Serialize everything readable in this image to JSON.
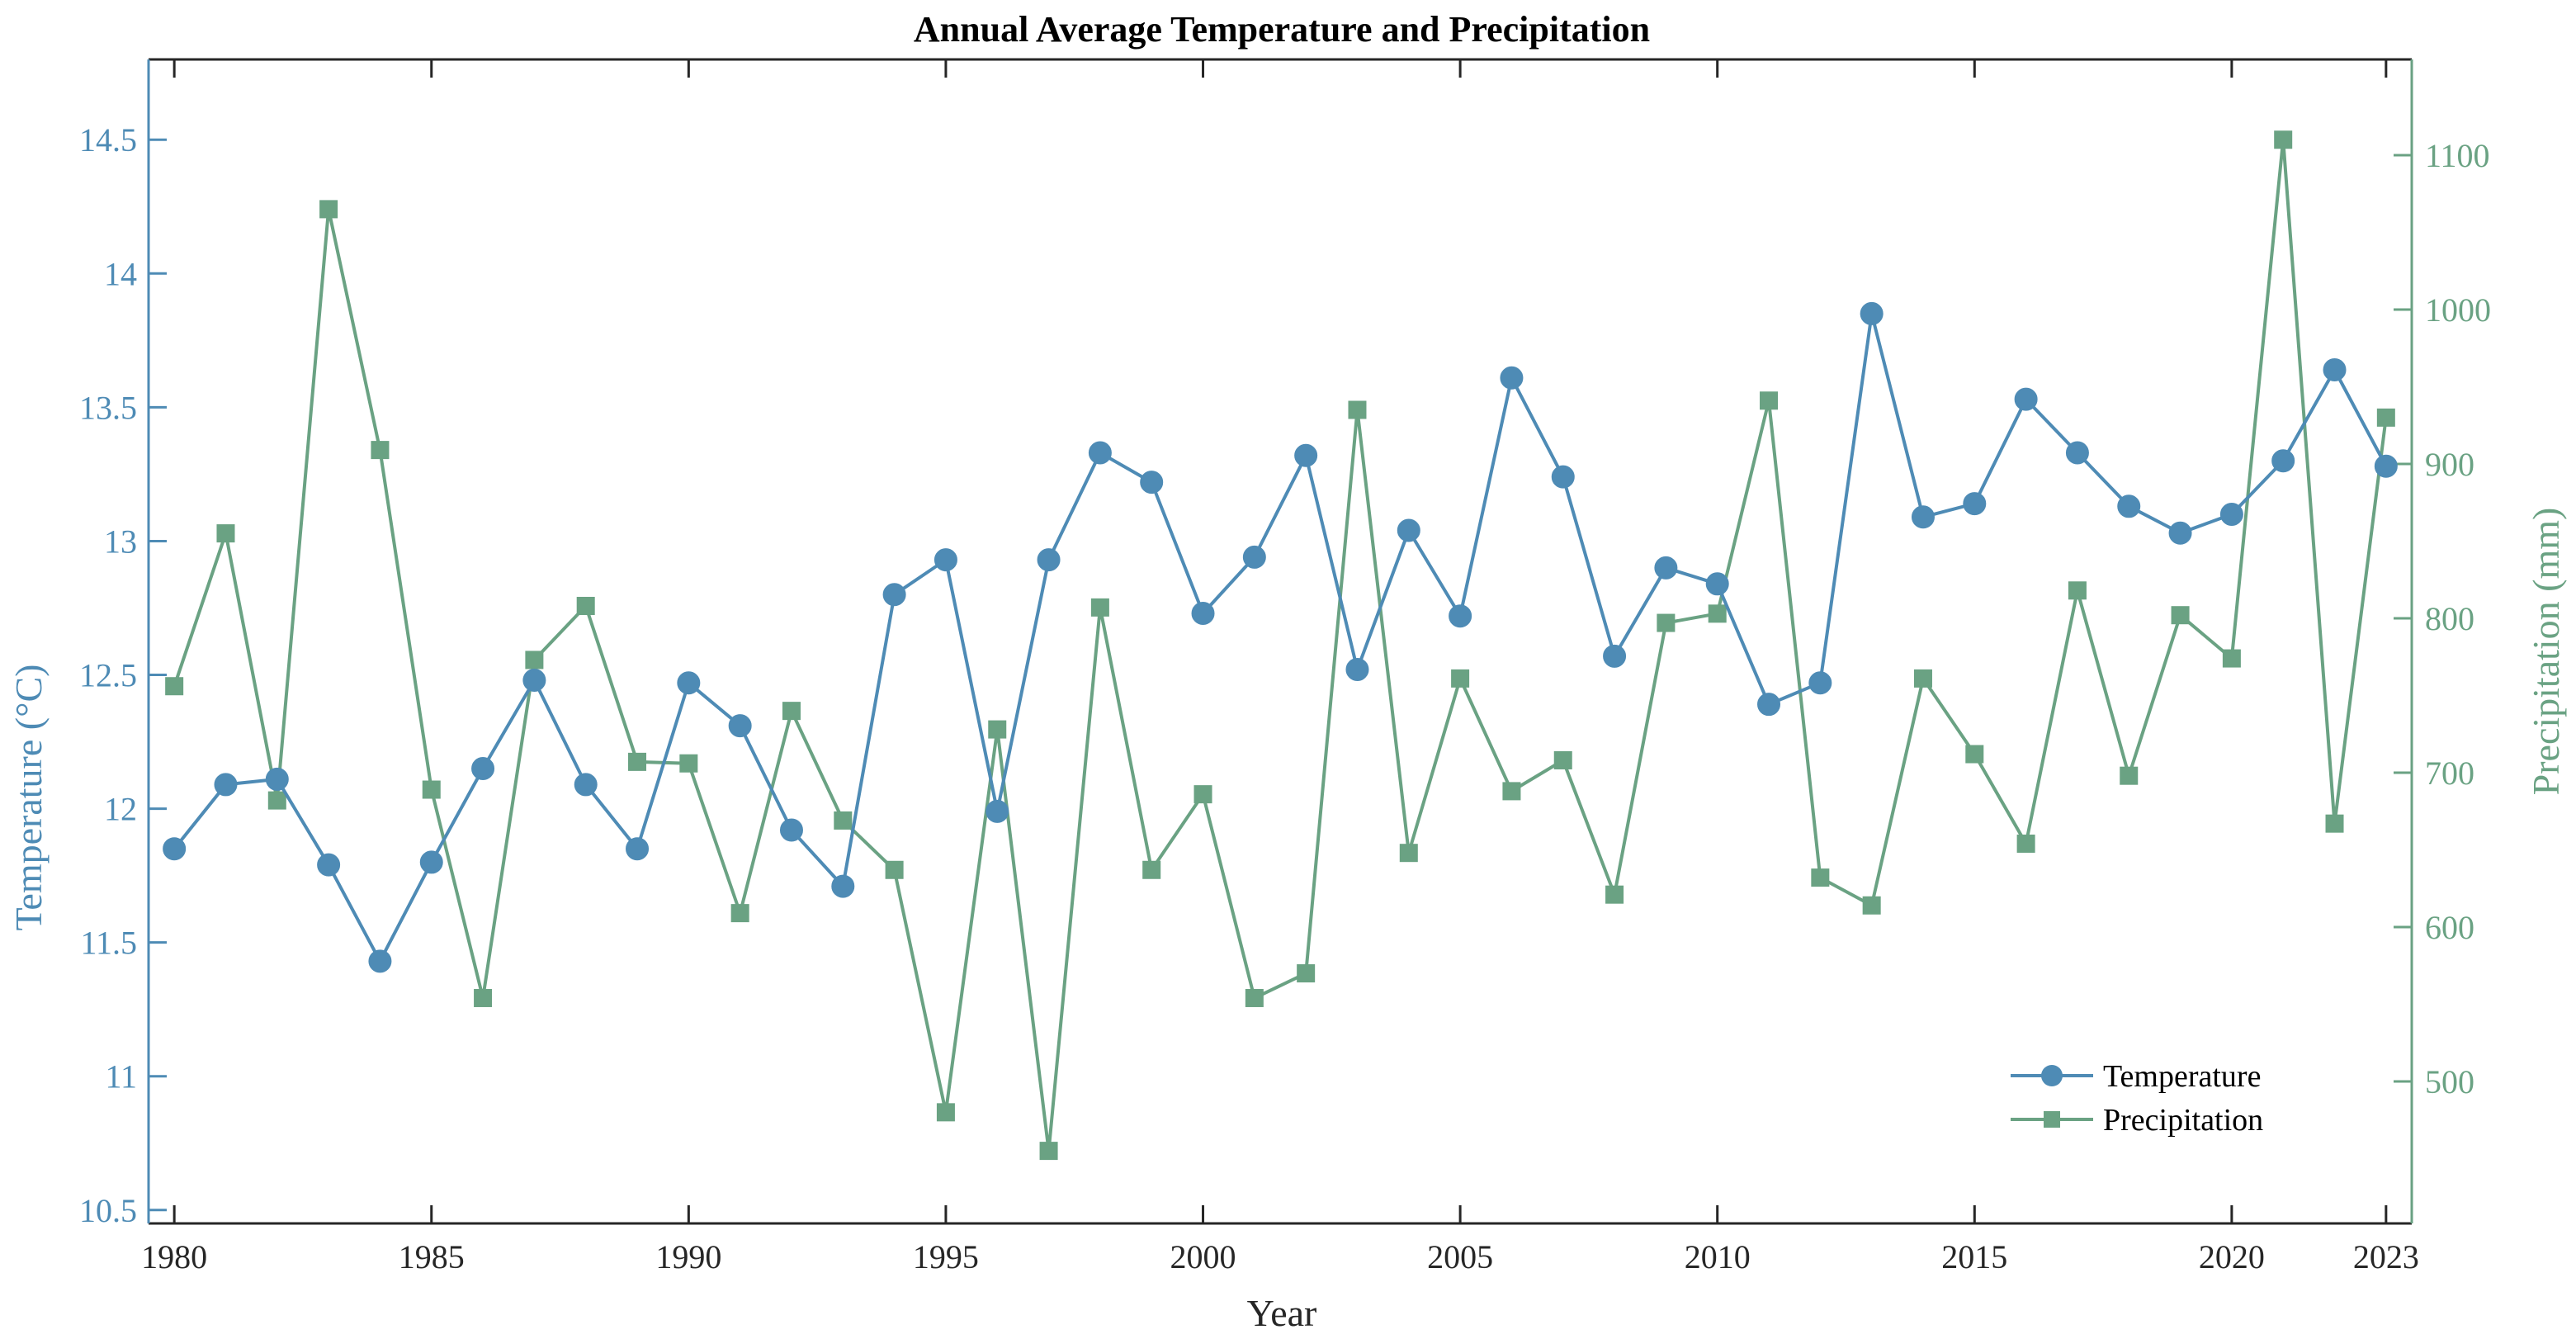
{
  "colors": {
    "temperature": "#4E8BB5",
    "precipitation": "#6AA283",
    "axis": "#262626"
  },
  "chart_data": {
    "type": "line",
    "title": "Annual Average Temperature and Precipitation",
    "xlabel": "Year",
    "ylabel_left": "Temperature (°C)",
    "ylabel_right": "Precipitation (mm)",
    "xlim": [
      1979.5,
      2023.5
    ],
    "ylim_left": [
      10.45,
      14.8
    ],
    "ylim_right": [
      408,
      1162
    ],
    "x_ticks": [
      1980,
      1985,
      1990,
      1995,
      2000,
      2005,
      2010,
      2015,
      2020,
      2023
    ],
    "y_ticks_left": [
      10.5,
      11,
      11.5,
      12,
      12.5,
      13,
      13.5,
      14,
      14.5
    ],
    "y_ticks_right": [
      500,
      600,
      700,
      800,
      900,
      1000,
      1100
    ],
    "legend_position": "lower-right",
    "grid": false,
    "x": [
      1980,
      1981,
      1982,
      1983,
      1984,
      1985,
      1986,
      1987,
      1988,
      1989,
      1990,
      1991,
      1992,
      1993,
      1994,
      1995,
      1996,
      1997,
      1998,
      1999,
      2000,
      2001,
      2002,
      2003,
      2004,
      2005,
      2006,
      2007,
      2008,
      2009,
      2010,
      2011,
      2012,
      2013,
      2014,
      2015,
      2016,
      2017,
      2018,
      2019,
      2020,
      2021,
      2022,
      2023
    ],
    "series": [
      {
        "name": "Temperature",
        "axis": "left",
        "marker": "circle",
        "values": [
          11.85,
          12.09,
          12.11,
          11.79,
          11.43,
          11.8,
          12.15,
          12.48,
          12.09,
          11.85,
          12.47,
          12.31,
          11.92,
          11.71,
          12.8,
          12.93,
          11.99,
          12.93,
          13.33,
          13.22,
          12.73,
          12.94,
          13.32,
          12.52,
          13.04,
          12.72,
          13.61,
          13.24,
          12.57,
          12.9,
          12.84,
          12.39,
          12.47,
          13.85,
          13.09,
          13.14,
          13.53,
          13.33,
          13.13,
          13.03,
          13.1,
          13.3,
          13.64,
          13.28
        ]
      },
      {
        "name": "Precipitation",
        "axis": "right",
        "marker": "square",
        "values": [
          756,
          855,
          682,
          1065,
          909,
          689,
          554,
          773,
          808,
          707,
          706,
          609,
          740,
          669,
          637,
          480,
          728,
          455,
          807,
          637,
          686,
          554,
          570,
          935,
          648,
          761,
          688,
          708,
          621,
          797,
          803,
          941,
          632,
          614,
          761,
          712,
          654,
          818,
          698,
          802,
          774,
          1110,
          667,
          930
        ]
      }
    ]
  }
}
